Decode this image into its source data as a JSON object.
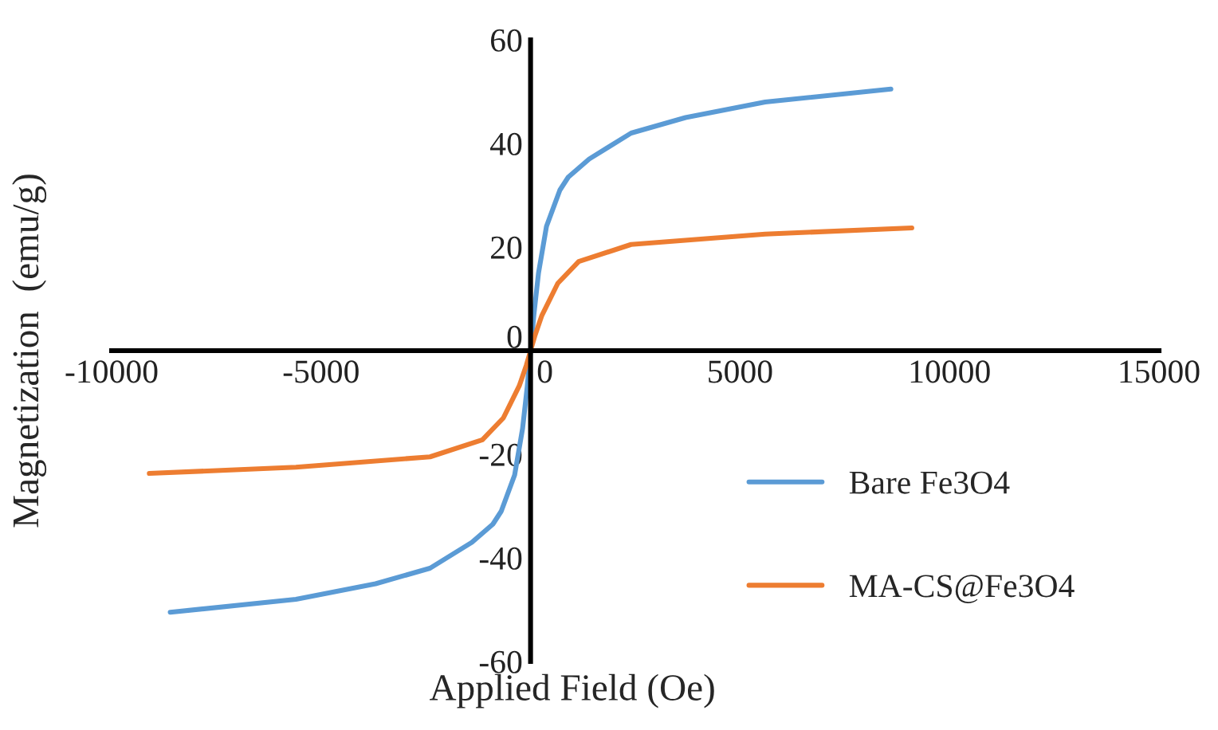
{
  "chart_data": {
    "type": "line",
    "xlabel": "Applied Field (Oe)",
    "ylabel": "Magnetization  (emu/g)",
    "xlim": [
      -10000,
      15000
    ],
    "xticks": [
      -10000,
      -5000,
      0,
      5000,
      10000,
      15000
    ],
    "ylim": [
      -60,
      60
    ],
    "yticks": [
      -60,
      -40,
      -20,
      0,
      20,
      40,
      60
    ],
    "grid": false,
    "legend": "right",
    "marker": "none",
    "line_style": "solid",
    "series": [
      {
        "name": "Bare Fe3O4",
        "color": "#5b9bd5",
        "x": [
          -8600,
          -5600,
          -3700,
          -2400,
          -1400,
          -900,
          -700,
          -380,
          -190,
          -80,
          0,
          80,
          190,
          380,
          700,
          900,
          1400,
          2400,
          3700,
          5600,
          8600
        ],
        "values": [
          -50.5,
          -48,
          -45,
          -42,
          -37,
          -33.5,
          -31,
          -24,
          -15,
          -7,
          0,
          7,
          15,
          24,
          31,
          33.5,
          37,
          42,
          45,
          48,
          50.5
        ]
      },
      {
        "name": "MA-CS@Fe3O4",
        "color": "#ed7d31",
        "x": [
          -9100,
          -5600,
          -2400,
          -1150,
          -650,
          -270,
          -100,
          0,
          100,
          270,
          650,
          1150,
          2400,
          5600,
          9100
        ],
        "values": [
          -23.7,
          -22.5,
          -20.5,
          -17.2,
          -13,
          -6.8,
          -2.8,
          0,
          2.8,
          6.8,
          13,
          17.2,
          20.5,
          22.5,
          23.7
        ]
      }
    ]
  }
}
